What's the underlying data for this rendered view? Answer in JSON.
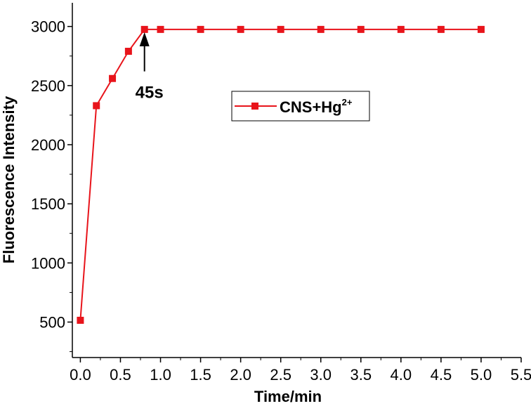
{
  "chart_data": {
    "type": "line",
    "xlabel": "Time/min",
    "ylabel": "Fluorescence Intensity",
    "xlim": [
      -0.1,
      5.5
    ],
    "ylim": [
      200,
      3200
    ],
    "xticks": [
      "0.0",
      "0.5",
      "1.0",
      "1.5",
      "2.0",
      "2.5",
      "3.0",
      "3.5",
      "4.0",
      "4.5",
      "5.0",
      "5.5"
    ],
    "yticks": [
      "500",
      "1000",
      "1500",
      "2000",
      "2500",
      "3000"
    ],
    "grid": false,
    "legend_position": "center-right",
    "series": [
      {
        "name": "CNS+Hg",
        "name_superscript": "2+",
        "color": "#e8141b",
        "marker": "square",
        "x": [
          0.0,
          0.2,
          0.4,
          0.6,
          0.8,
          1.0,
          1.5,
          2.0,
          2.5,
          3.0,
          3.5,
          4.0,
          4.5,
          5.0
        ],
        "y": [
          515,
          2330,
          2560,
          2790,
          2975,
          2975,
          2975,
          2975,
          2975,
          2975,
          2975,
          2975,
          2975,
          2975
        ]
      }
    ],
    "annotations": [
      {
        "text": "45s",
        "x": 0.8,
        "y_from": 2620,
        "y_to": 2975,
        "type": "arrow"
      }
    ]
  }
}
